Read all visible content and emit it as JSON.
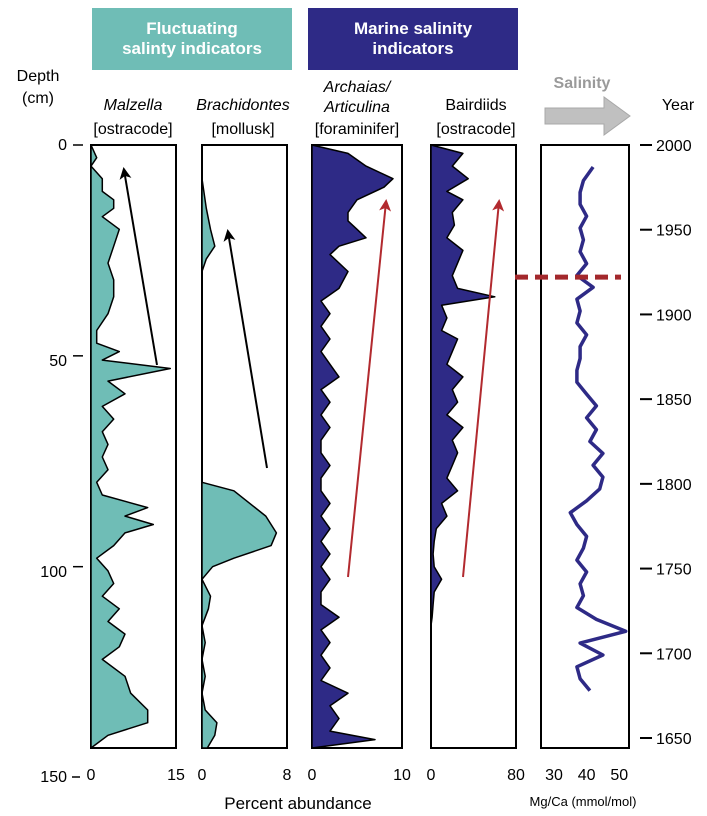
{
  "headers": {
    "fluctuating": "Fluctuating\nsalinty indicators",
    "marine": "Marine salinity\nindicators"
  },
  "left_axis": {
    "title_line1": "Depth",
    "title_line2": "(cm)",
    "ticks": [
      0,
      50,
      100,
      150
    ]
  },
  "right_axis": {
    "title": "Year",
    "ticks": [
      2000,
      1950,
      1900,
      1850,
      1800,
      1750,
      1700,
      1650
    ]
  },
  "salinity_label": "Salinity",
  "bottom_label": "Percent abundance",
  "colors": {
    "teal": "#6fbdb6",
    "navy": "#2e2a86",
    "red_arrow": "#b22a2f",
    "dashed_line": "#a3282c",
    "salinity_arrow": "#c0c0c0"
  },
  "chart_data": [
    {
      "type": "area",
      "title_line1": "Malzella",
      "title_line2": "[ostracode]",
      "italic_line1": true,
      "color": "#6fbdb6",
      "xlim": [
        0,
        15
      ],
      "xticks": [
        "0",
        "15"
      ],
      "ylim": [
        0,
        143
      ],
      "y": [
        0,
        3,
        5,
        8,
        11,
        13,
        15,
        17,
        20,
        24,
        28,
        32,
        36,
        40,
        44,
        47,
        49,
        51,
        53,
        56,
        59,
        62,
        65,
        68,
        71,
        74,
        77,
        80,
        83,
        86,
        88,
        90,
        92,
        95,
        98,
        101,
        104,
        107,
        110,
        113,
        116,
        119,
        122,
        126,
        130,
        134,
        137,
        140,
        143
      ],
      "values": [
        0,
        1,
        0,
        2,
        2,
        4,
        4,
        2,
        5,
        4,
        3,
        4,
        4,
        3,
        1,
        1,
        5,
        2,
        14,
        3,
        6,
        2,
        4,
        2,
        3,
        2,
        3,
        1,
        2,
        10,
        6,
        11,
        6,
        4,
        1,
        3,
        4,
        2,
        5,
        3,
        6,
        5,
        2,
        6,
        7,
        10,
        10,
        3,
        0
      ]
    },
    {
      "type": "area",
      "title_line1": "Brachidontes",
      "title_line2": "[mollusk]",
      "italic_line1": true,
      "color": "#6fbdb6",
      "xlim": [
        0,
        8
      ],
      "xticks": [
        "0",
        "8"
      ],
      "ylim": [
        0,
        143
      ],
      "y": [
        0,
        8,
        15,
        20,
        24,
        27,
        30,
        35,
        80,
        82,
        88,
        92,
        95,
        98,
        100,
        103,
        107,
        110,
        114,
        118,
        122,
        126,
        130,
        134,
        137,
        140,
        143
      ],
      "values": [
        0,
        0,
        0.4,
        0.8,
        1.2,
        0.4,
        0,
        0,
        0,
        3,
        6,
        7,
        6.5,
        3,
        1,
        0,
        0.8,
        0.6,
        0,
        0.3,
        0,
        0.3,
        0,
        0.3,
        1.4,
        1.2,
        0.5
      ]
    },
    {
      "type": "area",
      "title_line1": "Archaias/\nArticulina",
      "title_line2": "[foraminifer]",
      "italic_line1": true,
      "color": "#2e2a86",
      "xlim": [
        0,
        10
      ],
      "xticks": [
        "0",
        "10"
      ],
      "ylim": [
        0,
        143
      ],
      "y": [
        0,
        2,
        5,
        8,
        10,
        13,
        16,
        18,
        20,
        22,
        24,
        26,
        30,
        34,
        37,
        40,
        43,
        46,
        49,
        52,
        55,
        58,
        61,
        64,
        67,
        70,
        73,
        76,
        79,
        82,
        85,
        88,
        91,
        94,
        97,
        100,
        103,
        106,
        109,
        112,
        115,
        118,
        121,
        124,
        127,
        130,
        133,
        136,
        139,
        141,
        143
      ],
      "values": [
        0,
        4,
        6,
        9,
        8,
        5,
        4,
        4,
        5,
        6,
        3,
        2,
        4,
        3,
        1,
        2,
        1,
        2,
        1,
        2,
        3,
        1,
        2,
        1,
        2,
        1,
        1,
        2,
        1,
        1,
        2,
        1,
        2,
        1,
        2,
        1,
        2,
        1,
        1,
        3,
        1,
        2,
        1,
        2,
        1,
        4,
        2,
        3,
        2,
        7,
        0
      ]
    },
    {
      "type": "area",
      "title_line1": "Bairdiids",
      "title_line2": "[ostracode]",
      "italic_line1": false,
      "color": "#2e2a86",
      "xlim": [
        0,
        80
      ],
      "xticks": [
        "0",
        "80"
      ],
      "ylim": [
        0,
        143
      ],
      "y": [
        0,
        2,
        5,
        8,
        11,
        13,
        16,
        19,
        22,
        25,
        28,
        31,
        34,
        36,
        38,
        41,
        44,
        46,
        49,
        52,
        55,
        58,
        61,
        64,
        67,
        70,
        73,
        76,
        79,
        82,
        85,
        88,
        91,
        94,
        97,
        100,
        103,
        106,
        109,
        112,
        114
      ],
      "values": [
        0,
        30,
        20,
        35,
        15,
        30,
        20,
        22,
        15,
        30,
        25,
        20,
        25,
        60,
        10,
        15,
        10,
        25,
        20,
        15,
        30,
        20,
        25,
        15,
        30,
        20,
        25,
        20,
        15,
        25,
        10,
        15,
        5,
        3,
        2,
        3,
        10,
        3,
        2,
        1,
        0
      ]
    },
    {
      "type": "line",
      "title": "",
      "color": "#2e2a86",
      "xlabel": "Mg/Ca (mmol/mol)",
      "xlim": [
        26,
        53
      ],
      "xticks": [
        "30",
        "40",
        "50"
      ],
      "year_ylim": [
        2000,
        1650
      ],
      "x": [
        42,
        39,
        38,
        38,
        40,
        38,
        39,
        38,
        40,
        37,
        42,
        37,
        38,
        37,
        40,
        38,
        38,
        37,
        37,
        40,
        43,
        40,
        43,
        41,
        45,
        42,
        45,
        44,
        40,
        35,
        37,
        40,
        39,
        37,
        40,
        38,
        39,
        37,
        43,
        52,
        38,
        45,
        37,
        38,
        41
      ],
      "y": [
        1987,
        1979,
        1972,
        1965,
        1958,
        1951,
        1944,
        1937,
        1930,
        1923,
        1916,
        1909,
        1902,
        1895,
        1888,
        1881,
        1874,
        1867,
        1860,
        1853,
        1846,
        1839,
        1832,
        1825,
        1818,
        1811,
        1804,
        1797,
        1790,
        1783,
        1776,
        1769,
        1762,
        1755,
        1748,
        1741,
        1734,
        1727,
        1720,
        1713,
        1706,
        1699,
        1692,
        1685,
        1678
      ],
      "threshold_year": 1922
    }
  ]
}
